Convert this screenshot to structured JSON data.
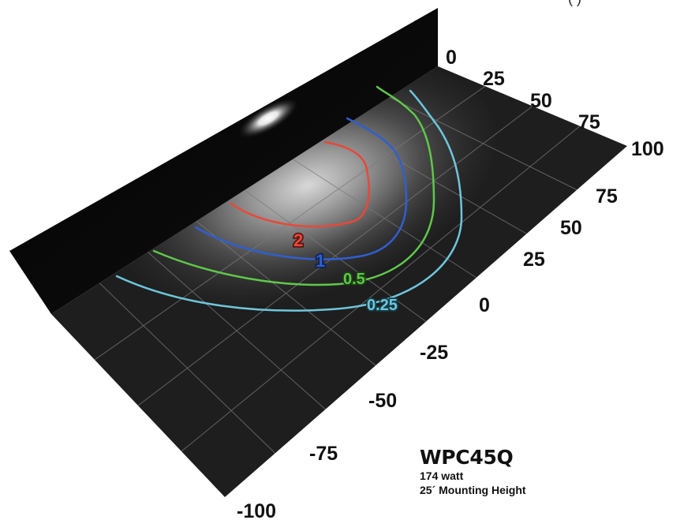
{
  "top_caption": "(       )",
  "depth_axis": {
    "ticks": [
      "0",
      "25",
      "50",
      "75",
      "100"
    ]
  },
  "width_axis": {
    "ticks": [
      "75",
      "50",
      "25",
      "0",
      "-25",
      "-50",
      "-75",
      "-100"
    ]
  },
  "contours": [
    {
      "label": "2",
      "color": "#e8483a"
    },
    {
      "label": "1",
      "color": "#2f5fd0"
    },
    {
      "label": "0.5",
      "color": "#5fc84a"
    },
    {
      "label": "0.25",
      "color": "#6ec6dc"
    }
  ],
  "product": {
    "name": "WPC45Q",
    "wattage": "174 watt",
    "mounting_height": "25´ Mounting Height"
  }
}
